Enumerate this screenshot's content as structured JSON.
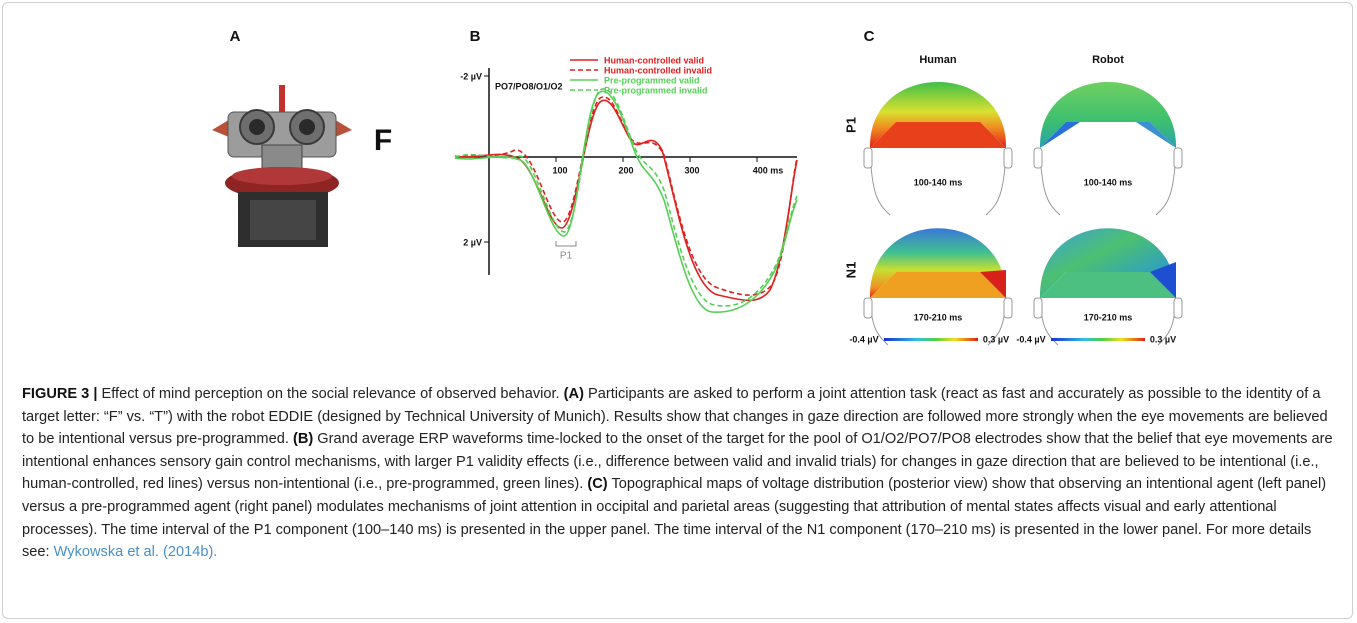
{
  "panels": {
    "a": {
      "label": "A",
      "letter": "F"
    },
    "b": {
      "label": "B",
      "legend": [
        "Human-controlled valid",
        "Human-controlled invalid",
        "Pre-programmed valid",
        "Pre-programmed invalid"
      ],
      "y_top": "-2 µV",
      "y_bottom": "2 µV",
      "electrodes": "PO7/PO8/O1/O2",
      "x_ticks": [
        "100",
        "200",
        "300",
        "400 ms"
      ],
      "component": "P1"
    },
    "c": {
      "label": "C",
      "columns": [
        "Human",
        "Robot"
      ],
      "rows": [
        "P1",
        "N1"
      ],
      "intervals": [
        "100-140 ms",
        "100-140 ms",
        "170-210 ms",
        "170-210 ms"
      ],
      "scale": [
        "-0.4 µV",
        "0.3 µV",
        "-0.4 µV",
        "0.3 µV"
      ]
    }
  },
  "caption": {
    "label": "FIGURE 3 |",
    "intro": "Effect of mind perception on the social relevance of observed behavior.",
    "a": "(A)",
    "a_text": "Participants are asked to perform a joint attention task (react as fast and accurately as possible to the identity of a target letter: “F” vs. “T”) with the robot EDDIE (designed by Technical University of Munich). Results show that changes in gaze direction are followed more strongly when the eye movements are believed to be intentional versus pre-programmed.",
    "b": "(B)",
    "b_text": "Grand average ERP waveforms time-locked to the onset of the target for the pool of O1/O2/PO7/PO8 electrodes show that the belief that eye movements are intentional enhances sensory gain control mechanisms, with larger P1 validity effects (i.e., difference between valid and invalid trials) for changes in gaze direction that are believed to be intentional (i.e., human-controlled, red lines) versus non-intentional (i.e., pre-programmed, green lines).",
    "c": "(C)",
    "c_text": "Topographical maps of voltage distribution (posterior view) show that observing an intentional agent (left panel) versus a pre-programmed agent (right panel) modulates mechanisms of joint attention in occipital and parietal areas (suggesting that attribution of mental states affects visual and early attentional processes). The time interval of the P1 component (100–140 ms) is presented in the upper panel. The time interval of the N1 component (170–210 ms) is presented in the lower panel. For more details see:",
    "link": "Wykowska et al. (2014b)."
  }
}
